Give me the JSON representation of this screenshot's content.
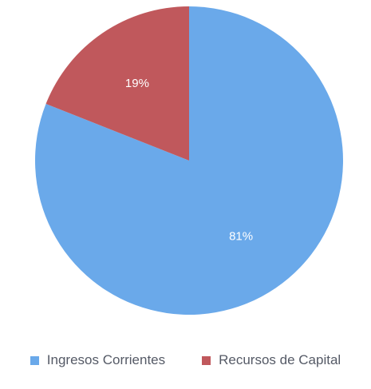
{
  "chart_data": {
    "type": "pie",
    "categories": [
      "Ingresos Corrientes",
      "Recursos de Capital"
    ],
    "values": [
      81,
      19
    ],
    "data_labels": [
      "81%",
      "19%"
    ],
    "colors": [
      "#6aa9ea",
      "#c0585c"
    ],
    "label_color": "#ffffff",
    "legend_position": "bottom",
    "start": "top",
    "direction": "clockwise"
  },
  "legend": {
    "items": [
      {
        "label": "Ingresos Corrientes",
        "color": "#6aa9ea"
      },
      {
        "label": "Recursos de Capital",
        "color": "#c0585c"
      }
    ]
  }
}
